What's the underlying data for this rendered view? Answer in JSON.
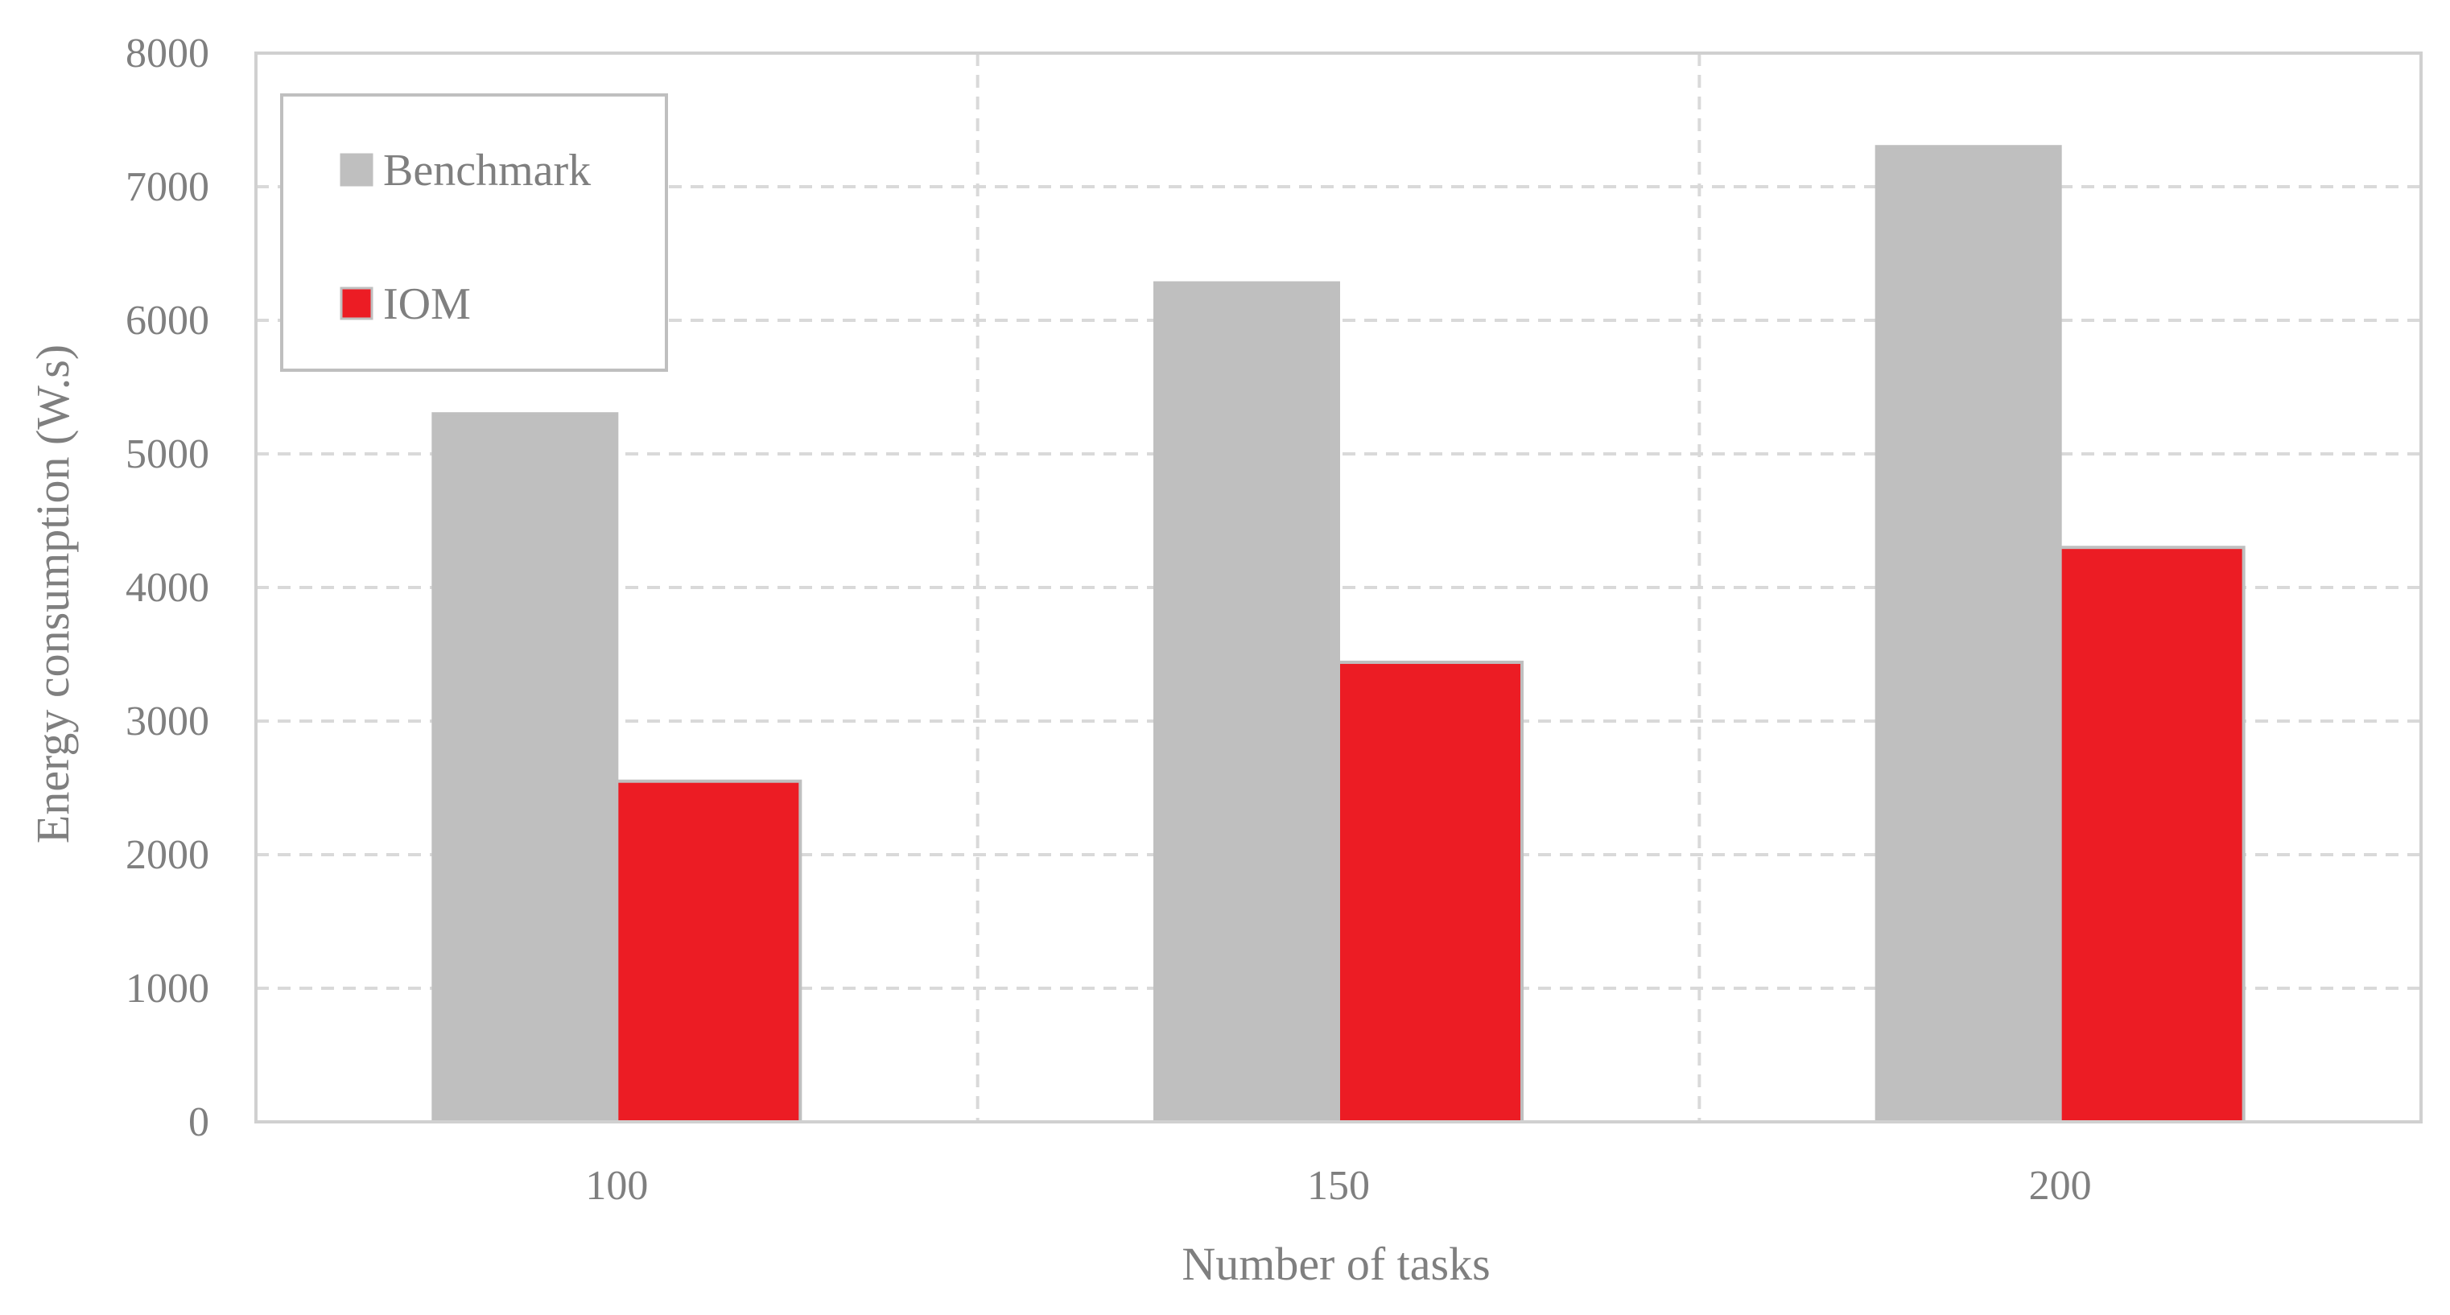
{
  "chart_data": {
    "type": "bar",
    "categories": [
      "100",
      "150",
      "200"
    ],
    "series": [
      {
        "name": "Benchmark",
        "values": [
          5300,
          6280,
          7300
        ],
        "color": "#bfbfbf"
      },
      {
        "name": "IOM",
        "values": [
          2550,
          3440,
          4300
        ],
        "color": "#ec1c24"
      }
    ],
    "title": "",
    "xlabel": "Number of tasks",
    "ylabel": "Energy consumption (W.s)",
    "ylim": [
      0,
      8000
    ],
    "yticks": [
      "0",
      "1000",
      "2000",
      "3000",
      "4000",
      "5000",
      "6000",
      "7000",
      "8000"
    ],
    "grid": true,
    "grid_style": "dashed",
    "legend_position": "top-left",
    "colors": {
      "text": "#7f7f7f",
      "axis": "#d0d0d0",
      "grid": "#d9d9d9",
      "bar_border": "#bfbfbf",
      "legend_border": "#bfbfbf"
    }
  }
}
